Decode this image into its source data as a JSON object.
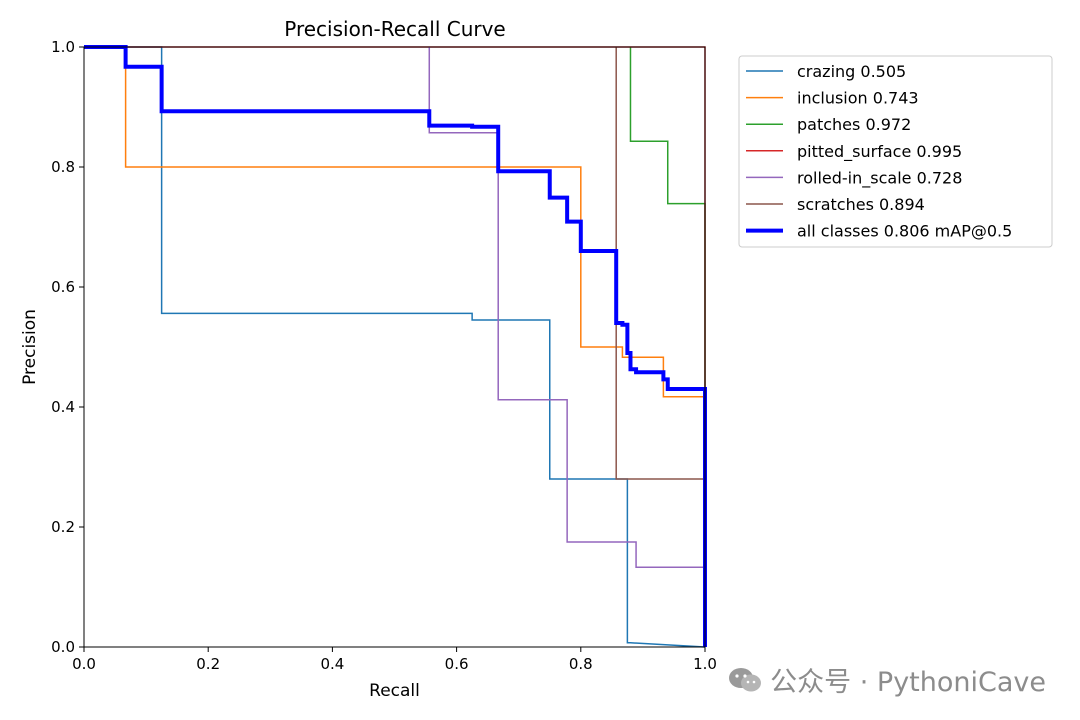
{
  "chart_data": {
    "type": "line",
    "title": "Precision-Recall Curve",
    "xlabel": "Recall",
    "ylabel": "Precision",
    "xlim": [
      0,
      1
    ],
    "ylim": [
      0,
      1
    ],
    "xticks": [
      "0.0",
      "0.2",
      "0.4",
      "0.6",
      "0.8",
      "1.0"
    ],
    "yticks": [
      "0.0",
      "0.2",
      "0.4",
      "0.6",
      "0.8",
      "1.0"
    ],
    "grid": false,
    "legend_position": "outside-upper-right",
    "series": [
      {
        "name": "crazing",
        "legend": "crazing 0.505",
        "color": "#1f77b4",
        "points": [
          [
            0,
            1
          ],
          [
            0.125,
            1
          ],
          [
            0.125,
            0.556
          ],
          [
            0.625,
            0.556
          ],
          [
            0.625,
            0.545
          ],
          [
            0.75,
            0.545
          ],
          [
            0.75,
            0.28
          ],
          [
            0.875,
            0.28
          ],
          [
            0.875,
            0.007
          ],
          [
            0.88,
            0.007
          ],
          [
            1,
            0
          ],
          [
            1,
            0
          ]
        ]
      },
      {
        "name": "inclusion",
        "legend": "inclusion 0.743",
        "color": "#ff7f0e",
        "points": [
          [
            0,
            1
          ],
          [
            0.067,
            1
          ],
          [
            0.067,
            0.8
          ],
          [
            0.8,
            0.8
          ],
          [
            0.8,
            0.5
          ],
          [
            0.867,
            0.5
          ],
          [
            0.867,
            0.483
          ],
          [
            0.933,
            0.483
          ],
          [
            0.933,
            0.417
          ],
          [
            1,
            0.417
          ],
          [
            1,
            0
          ]
        ]
      },
      {
        "name": "patches",
        "legend": "patches 0.972",
        "color": "#2ca02c",
        "points": [
          [
            0.88,
            1
          ],
          [
            0.88,
            0.843
          ],
          [
            0.94,
            0.843
          ],
          [
            0.94,
            0.739
          ],
          [
            1,
            0.739
          ],
          [
            1,
            0
          ]
        ]
      },
      {
        "name": "pitted_surface",
        "legend": "pitted_surface 0.995",
        "color": "#d62728",
        "points": [
          [
            0,
            1
          ],
          [
            1,
            1
          ],
          [
            1,
            0
          ]
        ]
      },
      {
        "name": "rolled-in_scale",
        "legend": "rolled-in_scale 0.728",
        "color": "#9467bd",
        "points": [
          [
            0.556,
            1
          ],
          [
            0.556,
            0.857
          ],
          [
            0.667,
            0.857
          ],
          [
            0.667,
            0.412
          ],
          [
            0.778,
            0.412
          ],
          [
            0.778,
            0.175
          ],
          [
            0.889,
            0.175
          ],
          [
            0.889,
            0.133
          ],
          [
            1,
            0.133
          ],
          [
            1,
            0
          ]
        ]
      },
      {
        "name": "scratches",
        "legend": "scratches 0.894",
        "color": "#8c564b",
        "points": [
          [
            0.857,
            1
          ],
          [
            0.857,
            0.28
          ],
          [
            1,
            0.28
          ],
          [
            1,
            0
          ]
        ]
      },
      {
        "name": "all classes",
        "legend": "all classes 0.806 mAP@0.5",
        "color": "#0000ff",
        "bold": true,
        "points": [
          [
            0,
            1
          ],
          [
            0.067,
            1
          ],
          [
            0.067,
            0.967
          ],
          [
            0.125,
            0.967
          ],
          [
            0.125,
            0.893
          ],
          [
            0.556,
            0.893
          ],
          [
            0.556,
            0.869
          ],
          [
            0.625,
            0.869
          ],
          [
            0.625,
            0.867
          ],
          [
            0.667,
            0.867
          ],
          [
            0.667,
            0.793
          ],
          [
            0.75,
            0.793
          ],
          [
            0.75,
            0.749
          ],
          [
            0.778,
            0.749
          ],
          [
            0.778,
            0.709
          ],
          [
            0.8,
            0.709
          ],
          [
            0.8,
            0.66
          ],
          [
            0.857,
            0.66
          ],
          [
            0.857,
            0.54
          ],
          [
            0.867,
            0.54
          ],
          [
            0.867,
            0.537
          ],
          [
            0.875,
            0.537
          ],
          [
            0.875,
            0.49
          ],
          [
            0.88,
            0.49
          ],
          [
            0.88,
            0.463
          ],
          [
            0.889,
            0.463
          ],
          [
            0.889,
            0.458
          ],
          [
            0.933,
            0.458
          ],
          [
            0.933,
            0.446
          ],
          [
            0.94,
            0.446
          ],
          [
            0.94,
            0.43
          ],
          [
            1,
            0.43
          ],
          [
            1,
            0
          ]
        ]
      }
    ]
  },
  "watermark": {
    "text": "公众号 · PythoniCave",
    "icon": "wechat-icon"
  }
}
